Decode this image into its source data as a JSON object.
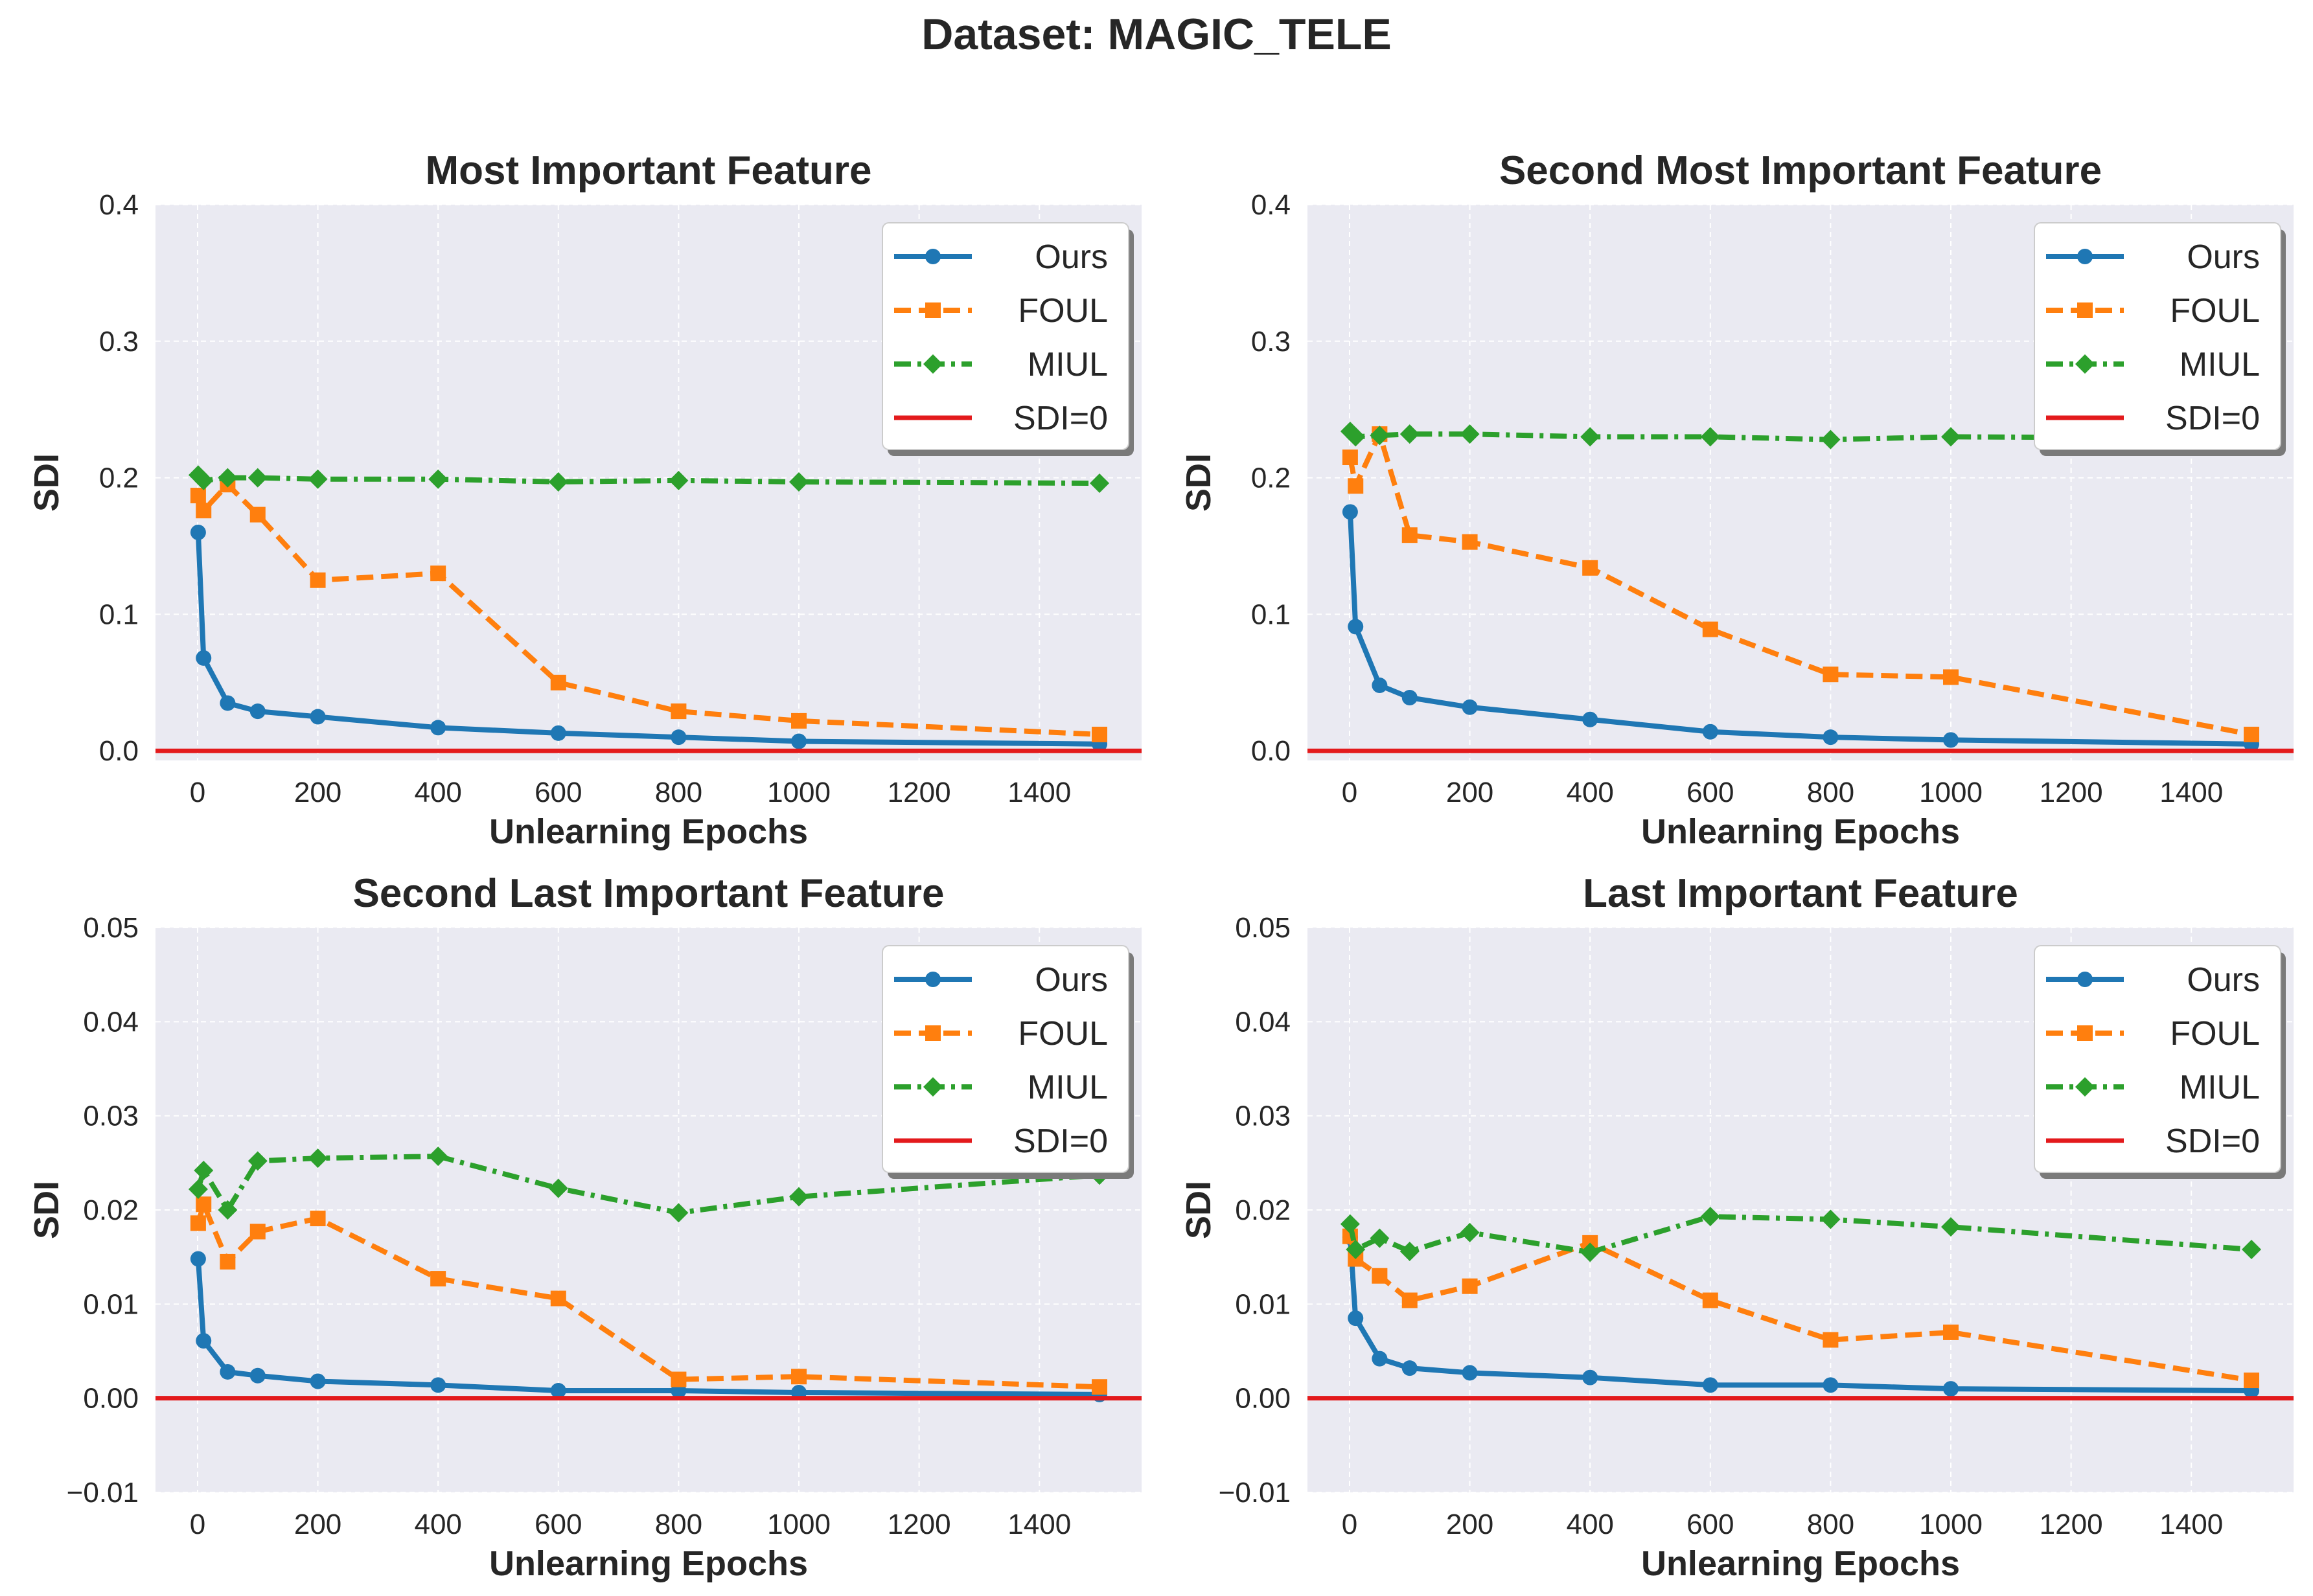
{
  "suptitle": "Dataset: MAGIC_TELE",
  "colors": {
    "background": "#eaeaf2",
    "grid": "#ffffff",
    "ours": "#1f77b4",
    "foul": "#ff7f0e",
    "miul": "#2ca02c",
    "sdi0": "#e31a1c"
  },
  "chart_data": [
    {
      "type": "line",
      "title": "Most Important Feature",
      "xlabel": "Unlearning Epochs",
      "ylabel": "SDI",
      "xlim": [
        -70,
        1570
      ],
      "ylim": [
        -0.007,
        0.4
      ],
      "xticks": [
        0,
        200,
        400,
        600,
        800,
        1000,
        1200,
        1400
      ],
      "yticks": [
        0.0,
        0.1,
        0.2,
        0.3,
        0.4
      ],
      "ytick_labels": [
        "0.0",
        "0.1",
        "0.2",
        "0.3",
        "0.4"
      ],
      "grid": true,
      "legend_position": "upper right",
      "series": [
        {
          "name": "Ours",
          "marker": "circle",
          "style": "solid",
          "x": [
            1,
            10,
            50,
            100,
            200,
            400,
            600,
            800,
            1000,
            1500
          ],
          "y": [
            0.16,
            0.068,
            0.035,
            0.029,
            0.025,
            0.017,
            0.013,
            0.01,
            0.007,
            0.005
          ]
        },
        {
          "name": "FOUL",
          "marker": "square",
          "style": "dashed",
          "x": [
            1,
            10,
            50,
            100,
            200,
            400,
            600,
            800,
            1000,
            1500
          ],
          "y": [
            0.187,
            0.176,
            0.195,
            0.173,
            0.125,
            0.13,
            0.05,
            0.029,
            0.022,
            0.012
          ]
        },
        {
          "name": "MIUL",
          "marker": "diamond",
          "style": "dashdot",
          "x": [
            1,
            10,
            50,
            100,
            200,
            400,
            600,
            800,
            1000,
            1500
          ],
          "y": [
            0.202,
            0.198,
            0.2,
            0.2,
            0.199,
            0.199,
            0.197,
            0.198,
            0.197,
            0.196
          ]
        }
      ],
      "hline": {
        "name": "SDI=0",
        "y": 0
      }
    },
    {
      "type": "line",
      "title": "Second Most Important Feature",
      "xlabel": "Unlearning Epochs",
      "ylabel": "SDI",
      "xlim": [
        -70,
        1570
      ],
      "ylim": [
        -0.007,
        0.4
      ],
      "xticks": [
        0,
        200,
        400,
        600,
        800,
        1000,
        1200,
        1400
      ],
      "yticks": [
        0.0,
        0.1,
        0.2,
        0.3,
        0.4
      ],
      "ytick_labels": [
        "0.0",
        "0.1",
        "0.2",
        "0.3",
        "0.4"
      ],
      "grid": true,
      "legend_position": "upper right",
      "series": [
        {
          "name": "Ours",
          "marker": "circle",
          "style": "solid",
          "x": [
            1,
            10,
            50,
            100,
            200,
            400,
            600,
            800,
            1000,
            1500
          ],
          "y": [
            0.175,
            0.091,
            0.048,
            0.039,
            0.032,
            0.023,
            0.014,
            0.01,
            0.008,
            0.005
          ]
        },
        {
          "name": "FOUL",
          "marker": "square",
          "style": "dashed",
          "x": [
            1,
            10,
            50,
            100,
            200,
            400,
            600,
            800,
            1000,
            1500
          ],
          "y": [
            0.215,
            0.194,
            0.232,
            0.158,
            0.153,
            0.134,
            0.089,
            0.056,
            0.054,
            0.012
          ]
        },
        {
          "name": "MIUL",
          "marker": "diamond",
          "style": "dashdot",
          "x": [
            1,
            10,
            50,
            100,
            200,
            400,
            600,
            800,
            1000,
            1500
          ],
          "y": [
            0.234,
            0.23,
            0.231,
            0.232,
            0.232,
            0.23,
            0.23,
            0.228,
            0.23,
            0.229
          ]
        }
      ],
      "hline": {
        "name": "SDI=0",
        "y": 0
      }
    },
    {
      "type": "line",
      "title": "Second Last Important Feature",
      "xlabel": "Unlearning Epochs",
      "ylabel": "SDI",
      "xlim": [
        -70,
        1570
      ],
      "ylim": [
        -0.01,
        0.05
      ],
      "xticks": [
        0,
        200,
        400,
        600,
        800,
        1000,
        1200,
        1400
      ],
      "yticks": [
        -0.01,
        0.0,
        0.01,
        0.02,
        0.03,
        0.04,
        0.05
      ],
      "ytick_labels": [
        "−0.01",
        "0.00",
        "0.01",
        "0.02",
        "0.03",
        "0.04",
        "0.05"
      ],
      "grid": true,
      "legend_position": "upper right",
      "series": [
        {
          "name": "Ours",
          "marker": "circle",
          "style": "solid",
          "x": [
            1,
            10,
            50,
            100,
            200,
            400,
            600,
            800,
            1000,
            1500
          ],
          "y": [
            0.0148,
            0.0061,
            0.0028,
            0.0024,
            0.0018,
            0.0014,
            0.0008,
            0.0008,
            0.0006,
            0.0004
          ]
        },
        {
          "name": "FOUL",
          "marker": "square",
          "style": "dashed",
          "x": [
            1,
            10,
            50,
            100,
            200,
            400,
            600,
            800,
            1000,
            1500
          ],
          "y": [
            0.0186,
            0.0206,
            0.0145,
            0.0177,
            0.0191,
            0.0127,
            0.0106,
            0.002,
            0.0023,
            0.0012
          ]
        },
        {
          "name": "MIUL",
          "marker": "diamond",
          "style": "dashdot",
          "x": [
            1,
            10,
            50,
            100,
            200,
            400,
            600,
            800,
            1000,
            1500
          ],
          "y": [
            0.0222,
            0.0242,
            0.02,
            0.0252,
            0.0255,
            0.0257,
            0.0223,
            0.0197,
            0.0214,
            0.0237
          ]
        }
      ],
      "hline": {
        "name": "SDI=0",
        "y": 0
      }
    },
    {
      "type": "line",
      "title": "Last Important Feature",
      "xlabel": "Unlearning Epochs",
      "ylabel": "SDI",
      "xlim": [
        -70,
        1570
      ],
      "ylim": [
        -0.01,
        0.05
      ],
      "xticks": [
        0,
        200,
        400,
        600,
        800,
        1000,
        1200,
        1400
      ],
      "yticks": [
        -0.01,
        0.0,
        0.01,
        0.02,
        0.03,
        0.04,
        0.05
      ],
      "ytick_labels": [
        "−0.01",
        "0.00",
        "0.01",
        "0.02",
        "0.03",
        "0.04",
        "0.05"
      ],
      "grid": true,
      "legend_position": "upper right",
      "series": [
        {
          "name": "Ours",
          "marker": "circle",
          "style": "solid",
          "x": [
            1,
            10,
            50,
            100,
            200,
            400,
            600,
            800,
            1000,
            1500
          ],
          "y": [
            0.0171,
            0.0085,
            0.0042,
            0.0032,
            0.0027,
            0.0022,
            0.0014,
            0.0014,
            0.001,
            0.0008
          ]
        },
        {
          "name": "FOUL",
          "marker": "square",
          "style": "dashed",
          "x": [
            1,
            10,
            50,
            100,
            200,
            400,
            600,
            800,
            1000,
            1500
          ],
          "y": [
            0.0172,
            0.0148,
            0.013,
            0.0104,
            0.0119,
            0.0165,
            0.0104,
            0.0062,
            0.007,
            0.0019
          ]
        },
        {
          "name": "MIUL",
          "marker": "diamond",
          "style": "dashdot",
          "x": [
            1,
            10,
            50,
            100,
            200,
            400,
            600,
            800,
            1000,
            1500
          ],
          "y": [
            0.0185,
            0.0158,
            0.017,
            0.0156,
            0.0176,
            0.0155,
            0.0193,
            0.019,
            0.0182,
            0.0158
          ]
        }
      ],
      "hline": {
        "name": "SDI=0",
        "y": 0
      }
    }
  ]
}
